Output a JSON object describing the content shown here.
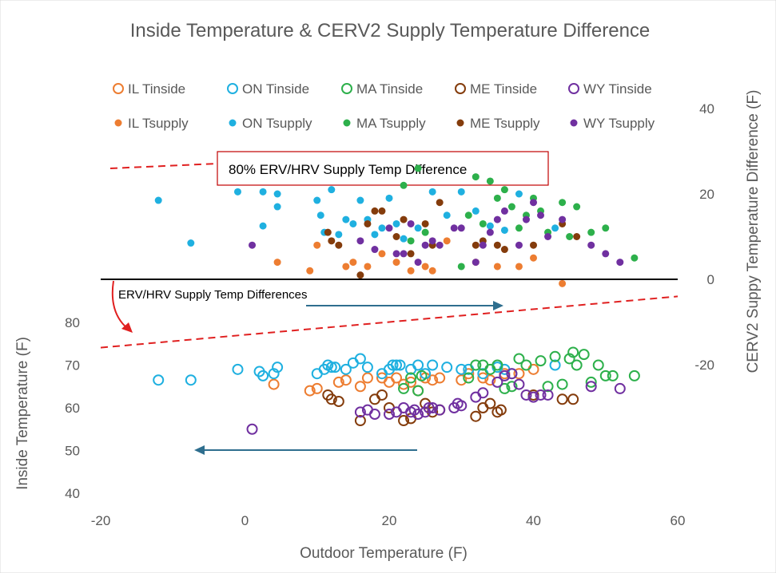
{
  "chart_data": {
    "type": "scatter",
    "title": "Inside Temperature & CERV2 Supply Temperature  Difference",
    "xlabel": "Outdoor Temperature (F)",
    "ylabel": "Inside Temperature (F)",
    "y2label": "CERV2 Suppy Temperature Difference (F)",
    "xlim": [
      -20,
      60
    ],
    "ylim": [
      40,
      80
    ],
    "y2lim": [
      -20,
      40
    ],
    "x_ticks": [
      "-20",
      "0",
      "20",
      "40",
      "60"
    ],
    "y_ticks": [
      "40",
      "50",
      "60",
      "70",
      "80"
    ],
    "y2_ticks": [
      "-20",
      "0",
      "20",
      "40"
    ],
    "grid": false,
    "legend_position": "top",
    "annotations": {
      "box_label": "80% ERV/HRV Supply Temp Difference",
      "diff_label": "ERV/HRV Supply Temp Differences"
    },
    "reference_lines": {
      "zero_line": {
        "axis": "y2",
        "points": [
          [
            -20,
            0
          ],
          [
            60,
            0
          ]
        ]
      },
      "erv80_line": {
        "axis": "y2",
        "points": [
          [
            -20,
            -16
          ],
          [
            60,
            -4
          ]
        ]
      }
    },
    "series": [
      {
        "name": "IL Tinside",
        "axis": "y",
        "marker": "open",
        "color": "#ED7D31",
        "x": [
          4,
          9,
          10,
          13,
          14,
          16,
          17,
          19,
          20,
          21,
          22,
          23,
          24,
          25,
          26,
          27,
          30,
          31,
          33,
          34,
          36,
          38,
          40
        ],
        "y": [
          65.5,
          64,
          64.5,
          66,
          66.5,
          65,
          67,
          67,
          66,
          67,
          65.5,
          66,
          64,
          67,
          66.5,
          67,
          66.5,
          68,
          67,
          66.5,
          68,
          68,
          69
        ]
      },
      {
        "name": "ON Tinside",
        "axis": "y",
        "marker": "open",
        "color": "#1FB0E0",
        "x": [
          -12,
          -7.5,
          -1,
          2,
          2.5,
          4,
          4.5,
          10,
          11,
          11.5,
          12,
          12.5,
          14,
          15,
          16,
          17,
          19,
          20,
          20.5,
          21,
          21.5,
          23,
          24,
          25,
          26,
          28,
          30,
          31,
          33,
          35,
          36,
          37,
          43
        ],
        "y": [
          66.5,
          66.5,
          69,
          68.5,
          67.5,
          68,
          69.5,
          68,
          69,
          70,
          69.5,
          69.5,
          69,
          70.5,
          71.5,
          69.5,
          68,
          69,
          70,
          70,
          70,
          69,
          70,
          68,
          70,
          69.5,
          69,
          69,
          68,
          69.5,
          69,
          68,
          70
        ]
      },
      {
        "name": "MA Tinside",
        "axis": "y",
        "marker": "open",
        "color": "#2DB04B",
        "x": [
          22,
          23,
          24,
          24.5,
          31,
          32,
          33,
          34,
          35,
          36,
          37,
          38,
          39,
          41,
          42,
          43,
          44,
          45,
          45.5,
          46,
          47,
          48,
          49,
          50,
          51,
          54
        ],
        "y": [
          64.5,
          67,
          64,
          67.5,
          67,
          70,
          70,
          69,
          70,
          64.5,
          65,
          71.5,
          70,
          71,
          65,
          72,
          65.5,
          71.5,
          73,
          70,
          72.5,
          66,
          70,
          67.5,
          67.5,
          67.5
        ]
      },
      {
        "name": "ME Tinside",
        "axis": "y",
        "marker": "open",
        "color": "#843C0C",
        "x": [
          11.5,
          12,
          13,
          16,
          18,
          19,
          20,
          22,
          23,
          25,
          26,
          27,
          32,
          33,
          34,
          35,
          35.5,
          40,
          44,
          45.5
        ],
        "y": [
          63,
          62,
          61.5,
          57,
          62,
          63,
          60,
          57,
          57.5,
          61,
          59,
          59.5,
          58,
          60,
          61,
          59,
          59.5,
          63,
          62,
          62
        ]
      },
      {
        "name": "WY Tinside",
        "axis": "y",
        "marker": "open",
        "color": "#7030A0",
        "x": [
          1,
          16,
          17,
          18,
          20,
          21,
          22,
          23,
          23.5,
          24,
          25,
          25.5,
          26,
          27,
          29,
          29.5,
          30,
          32,
          33,
          35,
          36,
          37,
          38,
          39,
          40,
          41,
          42,
          48,
          52
        ],
        "y": [
          55,
          59,
          59.5,
          58.5,
          58.5,
          59,
          60,
          59,
          59.5,
          58.5,
          59,
          60,
          60,
          59.5,
          60,
          61,
          60.5,
          62.5,
          63.5,
          66,
          67.5,
          68,
          65.5,
          63,
          62.5,
          63,
          63,
          65,
          64.5
        ]
      },
      {
        "name": "IL Tsupply",
        "axis": "y2",
        "marker": "filled",
        "color": "#ED7D31",
        "x": [
          4.5,
          9,
          10,
          14,
          15,
          17,
          19,
          21,
          23,
          25,
          26,
          28,
          32,
          35,
          38,
          40,
          44
        ],
        "y": [
          4,
          2,
          8,
          3,
          4,
          3,
          6,
          4,
          2,
          3,
          2,
          9,
          4,
          3,
          3,
          5,
          -1
        ]
      },
      {
        "name": "ON Tsupply",
        "axis": "y2",
        "marker": "filled",
        "color": "#1FB0E0",
        "x": [
          -12,
          -7.5,
          -1,
          2.5,
          2.5,
          4.5,
          4.5,
          10,
          10.5,
          11,
          12,
          13,
          14,
          15,
          16,
          17,
          18,
          19,
          20,
          21,
          22,
          24,
          26,
          28,
          30,
          32,
          34,
          36,
          38,
          43
        ],
        "y": [
          18.5,
          8.5,
          20.5,
          20.5,
          12.5,
          20,
          17,
          18.5,
          15,
          11,
          21,
          10.5,
          14,
          13,
          18.5,
          14,
          10.5,
          12,
          19,
          13,
          9.5,
          12,
          20.5,
          15,
          20.5,
          16,
          12.5,
          11.5,
          20,
          12
        ]
      },
      {
        "name": "MA Tsupply",
        "axis": "y2",
        "marker": "filled",
        "color": "#2DB04B",
        "x": [
          22,
          23,
          24,
          25,
          30,
          31,
          32,
          33,
          34,
          35,
          36,
          37,
          38,
          39,
          40,
          41,
          42,
          44,
          45,
          46,
          48,
          50,
          54
        ],
        "y": [
          22,
          9,
          26,
          11,
          3,
          15,
          24,
          13,
          23,
          19,
          21,
          17,
          12,
          15,
          19,
          16,
          11,
          18,
          10,
          17,
          11,
          12,
          5
        ]
      },
      {
        "name": "ME Tsupply",
        "axis": "y2",
        "marker": "filled",
        "color": "#843C0C",
        "x": [
          11.5,
          12,
          13,
          16,
          17,
          18,
          19,
          21,
          22,
          23,
          25,
          26,
          27,
          32,
          33,
          35,
          36,
          40,
          44,
          46
        ],
        "y": [
          11,
          9,
          8,
          1,
          13,
          16,
          16,
          10,
          14,
          6,
          13,
          8,
          18,
          8,
          9,
          8,
          7,
          8,
          13,
          10
        ]
      },
      {
        "name": "WY Tsupply",
        "axis": "y2",
        "marker": "filled",
        "color": "#7030A0",
        "x": [
          1,
          16,
          18,
          20,
          21,
          22,
          23,
          24,
          25,
          26,
          27,
          29,
          30,
          32,
          33,
          34,
          35,
          36,
          38,
          39,
          40,
          41,
          42,
          44,
          48,
          50,
          52
        ],
        "y": [
          8,
          9,
          7,
          12,
          6,
          6,
          13,
          4,
          8,
          9,
          8,
          12,
          12,
          4,
          8,
          11,
          14,
          16,
          8,
          14,
          18,
          15,
          10,
          14,
          8,
          6,
          4
        ]
      }
    ]
  }
}
